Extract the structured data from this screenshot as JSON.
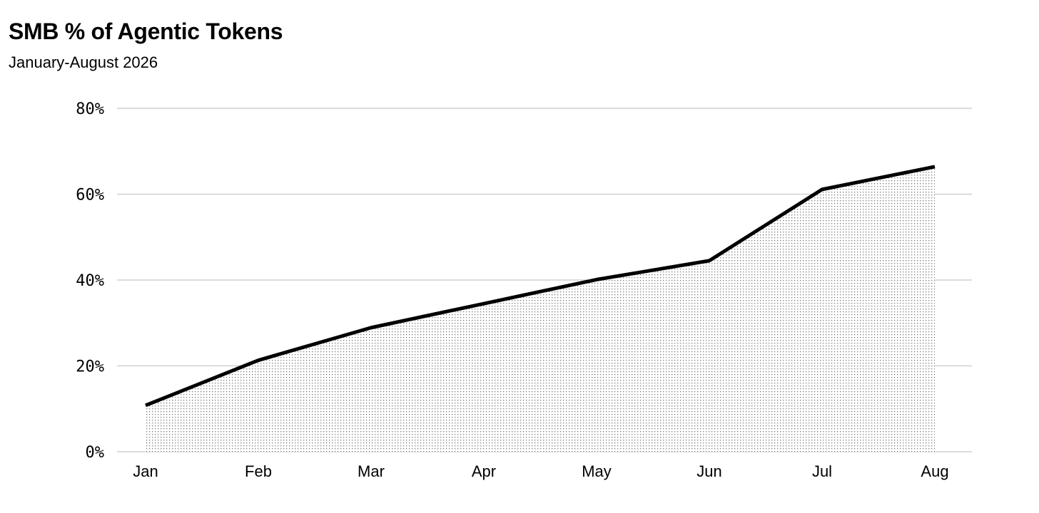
{
  "chart_data": {
    "type": "area",
    "title": "SMB % of Agentic Tokens",
    "subtitle": "January-August 2026",
    "xlabel": "",
    "ylabel": "",
    "categories": [
      "Jan",
      "Feb",
      "Mar",
      "Apr",
      "May",
      "Jun",
      "Jul",
      "Aug"
    ],
    "series": [
      {
        "values": [
          10.8,
          21.3,
          28.9,
          34.5,
          40.1,
          44.5,
          61.1,
          66.4
        ]
      }
    ],
    "ylim": [
      0,
      80
    ],
    "yticks": [
      0,
      20,
      40,
      60,
      80
    ],
    "ytick_labels": [
      "0%",
      "20%",
      "40%",
      "60%",
      "80%"
    ],
    "grid": true,
    "fill": "dotted",
    "line_color": "#000000",
    "grid_color": "#c8c8c8"
  }
}
